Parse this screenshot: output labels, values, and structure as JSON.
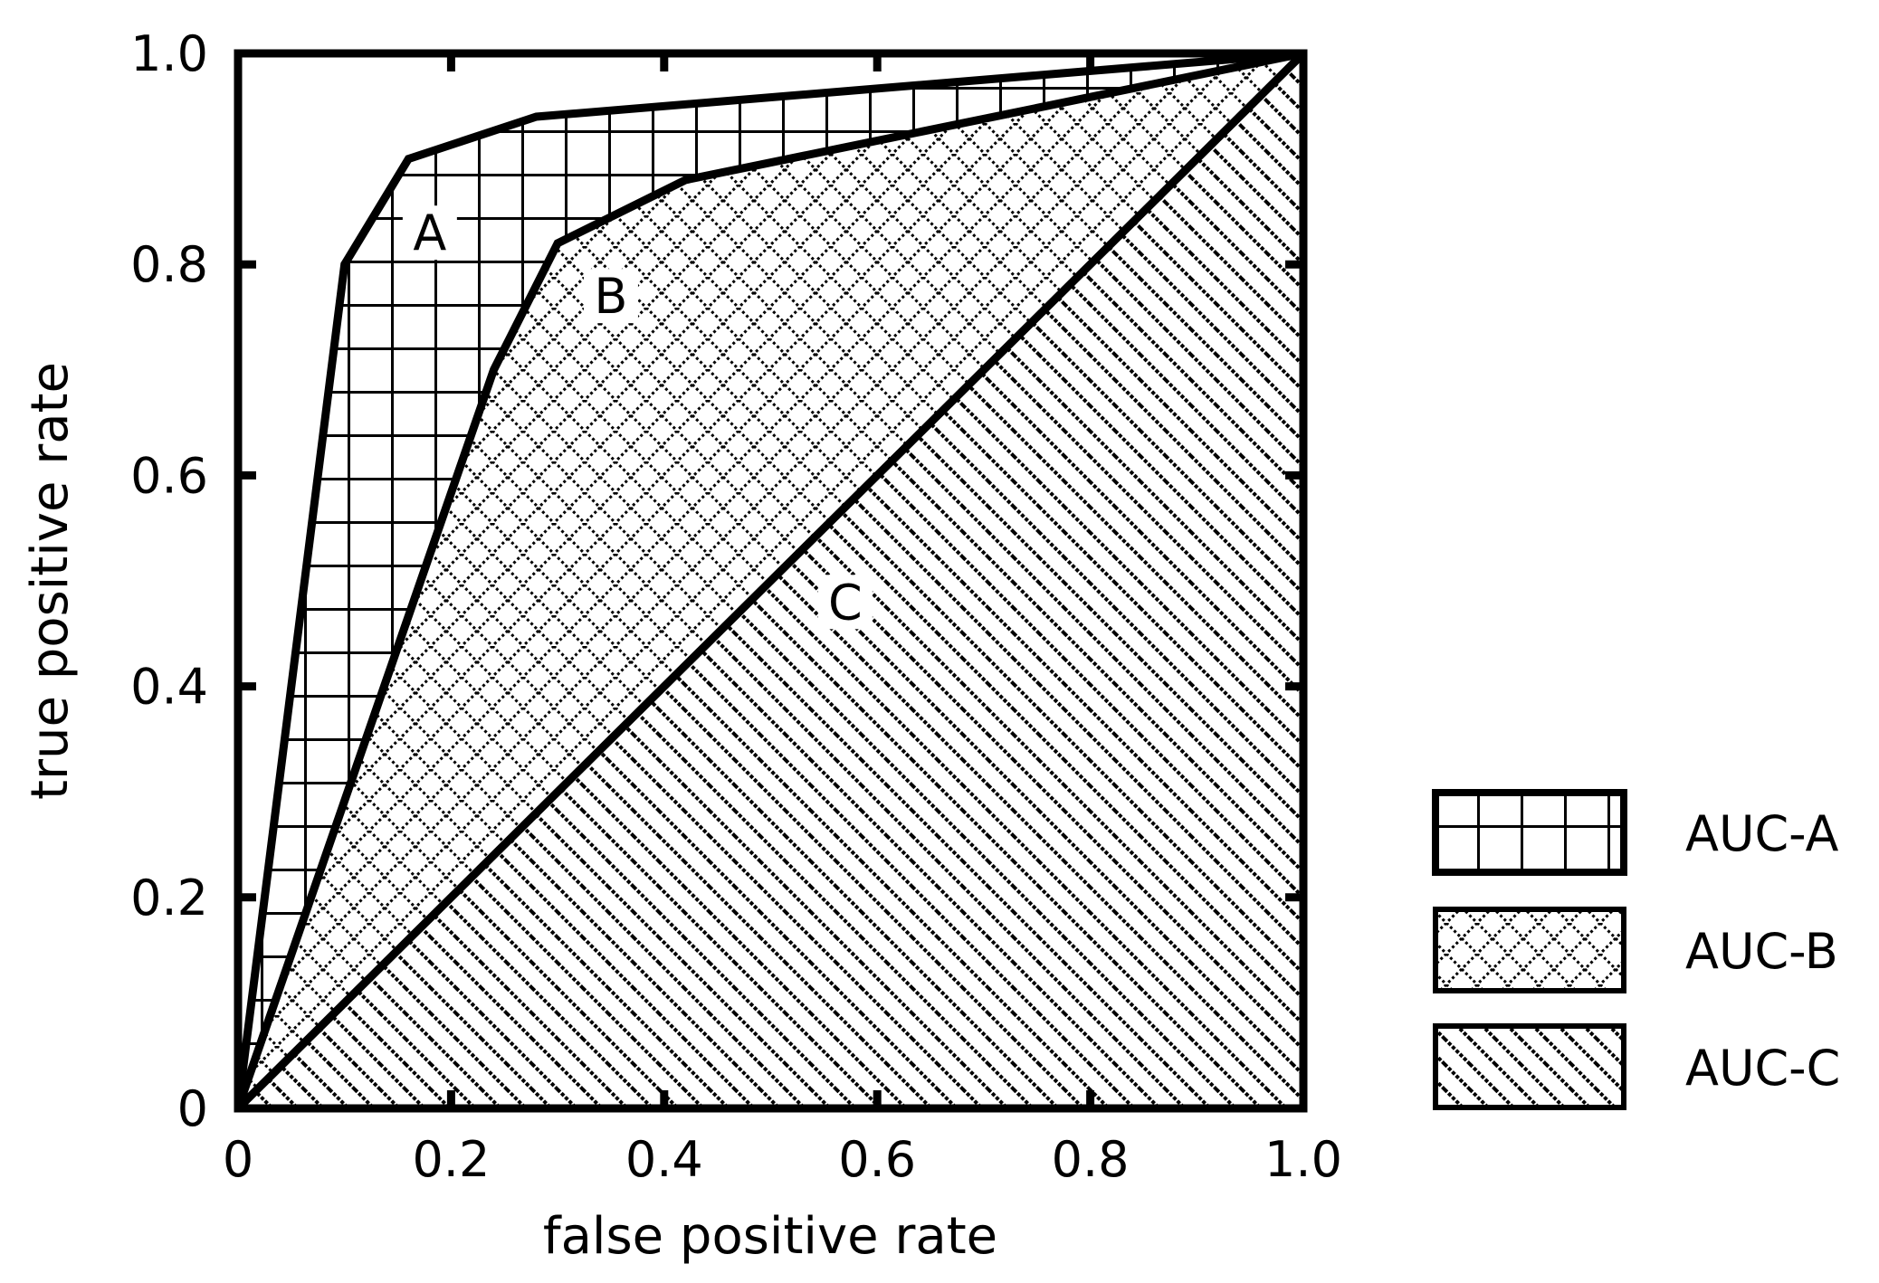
{
  "chart_data": {
    "type": "area",
    "title": "",
    "xlabel": "false positive rate",
    "ylabel": "true positive rate",
    "xlim": [
      0,
      1.0
    ],
    "ylim": [
      0,
      1.0
    ],
    "grid": false,
    "legend_position": "right",
    "x_ticks": [
      {
        "value": 0,
        "label": "0"
      },
      {
        "value": 0.2,
        "label": "0.2"
      },
      {
        "value": 0.4,
        "label": "0.4"
      },
      {
        "value": 0.6,
        "label": "0.6"
      },
      {
        "value": 0.8,
        "label": "0.8"
      },
      {
        "value": 1.0,
        "label": "1.0"
      }
    ],
    "y_ticks": [
      {
        "value": 0,
        "label": "0"
      },
      {
        "value": 0.2,
        "label": "0.2"
      },
      {
        "value": 0.4,
        "label": "0.4"
      },
      {
        "value": 0.6,
        "label": "0.6"
      },
      {
        "value": 0.8,
        "label": "0.8"
      },
      {
        "value": 1.0,
        "label": "1.0"
      }
    ],
    "series": [
      {
        "name": "AUC-A",
        "label": "A",
        "label_at": [
          0.18,
          0.83
        ],
        "pattern": "grid",
        "x": [
          0,
          0.1,
          0.16,
          0.28,
          1.0
        ],
        "y": [
          0,
          0.8,
          0.9,
          0.94,
          1.0
        ]
      },
      {
        "name": "AUC-B",
        "label": "B",
        "label_at": [
          0.35,
          0.77
        ],
        "pattern": "crosshatch",
        "x": [
          0,
          0.24,
          0.3,
          0.42,
          1.0
        ],
        "y": [
          0,
          0.7,
          0.82,
          0.88,
          1.0
        ]
      },
      {
        "name": "AUC-C",
        "label": "C",
        "label_at": [
          0.57,
          0.48
        ],
        "pattern": "diagonal",
        "x": [
          0,
          1.0
        ],
        "y": [
          0,
          1.0
        ]
      }
    ]
  },
  "legend": {
    "items": [
      {
        "label": "AUC-A",
        "pattern": "grid"
      },
      {
        "label": "AUC-B",
        "pattern": "crosshatch"
      },
      {
        "label": "AUC-C",
        "pattern": "diagonal"
      }
    ]
  },
  "colors": {
    "ink": "#000000",
    "background": "#ffffff"
  }
}
